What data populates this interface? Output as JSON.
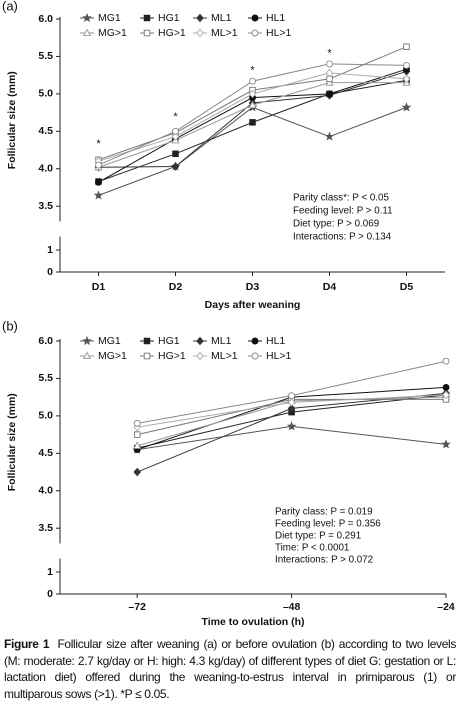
{
  "chart_data": [
    {
      "type": "line",
      "panel_label": "(a)",
      "y_label": "Follicular size (mm)",
      "x_label": "Days after weaning",
      "categories": [
        "D1",
        "D2",
        "D3",
        "D4",
        "D5"
      ],
      "ylim": [
        0,
        6.0
      ],
      "axis_break": [
        1,
        3.5
      ],
      "yticks": [
        0,
        1,
        3.5,
        {
          "value": 4,
          "label": "4.0"
        },
        4.5,
        {
          "value": 5,
          "label": "5.0"
        },
        5.5,
        {
          "value": 6,
          "label": "6.0"
        }
      ],
      "series": [
        {
          "name": "MG1",
          "color": "#555555",
          "marker": "star",
          "filled": true,
          "values": [
            3.48,
            4.03,
            4.82,
            4.43,
            4.82
          ]
        },
        {
          "name": "HG1",
          "color": "#222222",
          "marker": "square",
          "filled": true,
          "values": [
            3.83,
            4.2,
            4.62,
            5.0,
            5.18
          ]
        },
        {
          "name": "ML1",
          "color": "#333333",
          "marker": "diamond",
          "filled": true,
          "values": [
            4.02,
            4.03,
            4.88,
            4.98,
            5.3
          ]
        },
        {
          "name": "HL1",
          "color": "#111111",
          "marker": "circle",
          "filled": true,
          "values": [
            3.82,
            4.4,
            4.95,
            5.0,
            5.33
          ]
        },
        {
          "name": "MG>1",
          "color": "#999999",
          "marker": "triangle",
          "filled": false,
          "values": [
            4.02,
            4.38,
            4.85,
            5.15,
            5.15
          ]
        },
        {
          "name": "HG>1",
          "color": "#777777",
          "marker": "square",
          "filled": false,
          "values": [
            4.12,
            4.48,
            5.05,
            5.2,
            5.63
          ]
        },
        {
          "name": "ML>1",
          "color": "#aaaaaa",
          "marker": "diamond",
          "filled": false,
          "values": [
            4.1,
            4.43,
            5.0,
            5.28,
            5.2
          ]
        },
        {
          "name": "HL>1",
          "color": "#888888",
          "marker": "circle",
          "filled": false,
          "values": [
            4.05,
            4.5,
            5.17,
            5.4,
            5.38
          ]
        }
      ],
      "significance_text": "*",
      "significance_values": [
        4.37,
        4.73,
        5.35,
        5.58,
        null
      ],
      "stats": [
        "Parity class*: P < 0.05",
        "Feeding level: P > 0.11",
        "Diet type: P > 0.069",
        "Interactions: P > 0.134"
      ]
    },
    {
      "type": "line",
      "panel_label": "(b)",
      "y_label": "Follicular size (mm)",
      "x_label": "Time to ovulation (h)",
      "x": [
        -72,
        -48,
        -24
      ],
      "xlim": [
        -84,
        -24
      ],
      "xticks": [
        {
          "value": -72,
          "label": "–72"
        },
        {
          "value": -48,
          "label": "–48"
        },
        {
          "value": -24,
          "label": "–24"
        }
      ],
      "ylim": [
        0,
        6.0
      ],
      "axis_break": [
        1,
        3.5
      ],
      "yticks": [
        0,
        1,
        3.5,
        {
          "value": 4,
          "label": "4.0"
        },
        4.5,
        {
          "value": 5,
          "label": "5.0"
        },
        5.5,
        {
          "value": 6,
          "label": "6.0"
        }
      ],
      "series": [
        {
          "name": "MG1",
          "color": "#555555",
          "marker": "star",
          "filled": true,
          "values": [
            4.55,
            4.86,
            4.62
          ]
        },
        {
          "name": "HG1",
          "color": "#222222",
          "marker": "square",
          "filled": true,
          "values": [
            4.57,
            5.05,
            5.28
          ]
        },
        {
          "name": "ML1",
          "color": "#333333",
          "marker": "diamond",
          "filled": true,
          "values": [
            4.25,
            5.1,
            5.3
          ]
        },
        {
          "name": "HL1",
          "color": "#111111",
          "marker": "circle",
          "filled": true,
          "values": [
            4.55,
            5.25,
            5.38
          ]
        },
        {
          "name": "MG>1",
          "color": "#999999",
          "marker": "triangle",
          "filled": false,
          "values": [
            4.6,
            5.2,
            5.25
          ]
        },
        {
          "name": "HG>1",
          "color": "#777777",
          "marker": "square",
          "filled": false,
          "values": [
            4.75,
            5.22,
            5.22
          ]
        },
        {
          "name": "ML>1",
          "color": "#aaaaaa",
          "marker": "diamond",
          "filled": false,
          "values": [
            4.85,
            5.18,
            5.28
          ]
        },
        {
          "name": "HL>1",
          "color": "#888888",
          "marker": "circle",
          "filled": false,
          "values": [
            4.9,
            5.27,
            5.73
          ]
        }
      ],
      "stats": [
        "Parity class: P = 0.019",
        "Feeding level: P = 0.356",
        "Diet type: P = 0.291",
        "Time: P < 0.0001",
        "Interactions: P > 0.072"
      ]
    }
  ],
  "caption": {
    "label": "Figure 1",
    "text": "Follicular size after weaning (a) or before ovulation (b) according to two levels (M: moderate: 2.7 kg/day or H: high: 4.3 kg/day) of different types of diet G: gestation or L: lactation diet) offered during the weaning-to-estrus interval in primiparous (1) or multiparous sows (>1). *P ≤ 0.05."
  }
}
